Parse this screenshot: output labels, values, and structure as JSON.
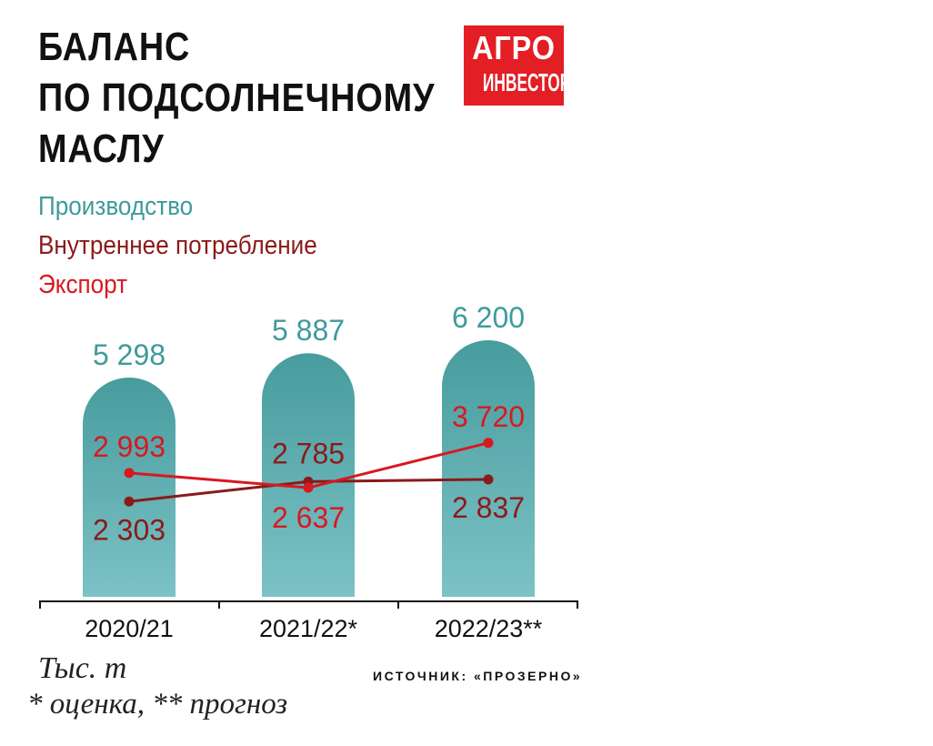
{
  "title_lines": [
    "БАЛАНС",
    "ПО ПОДСОЛНЕЧНОМУ",
    "МАСЛУ"
  ],
  "logo": {
    "line1": "АГРО",
    "line2": "ИНВЕСТОР",
    "color": "#e31e24"
  },
  "unit": "Тыс. т",
  "footnote": "* оценка, ** прогноз",
  "source": "ИСТОЧНИК: «ПРОЗЕРНО»",
  "chart_data": {
    "type": "bar",
    "categories": [
      "2020/21",
      "2021/22*",
      "2022/23**"
    ],
    "ylim": [
      0,
      6200
    ],
    "grid": false,
    "legend_position": "top-left",
    "series": [
      {
        "name": "Производство",
        "type": "bar",
        "values": [
          5298,
          5887,
          6200
        ],
        "labels": [
          "5 298",
          "5 887",
          "6 200"
        ],
        "color": "#4a9ea0"
      },
      {
        "name": "Внутреннее потребление",
        "type": "line",
        "values": [
          2303,
          2785,
          2837
        ],
        "labels": [
          "2 303",
          "2 785",
          "2 837"
        ],
        "color": "#8b1a1a"
      },
      {
        "name": "Экспорт",
        "type": "line",
        "values": [
          2993,
          2637,
          3720
        ],
        "labels": [
          "2 993",
          "2 637",
          "3 720"
        ],
        "color": "#d71920"
      }
    ]
  }
}
